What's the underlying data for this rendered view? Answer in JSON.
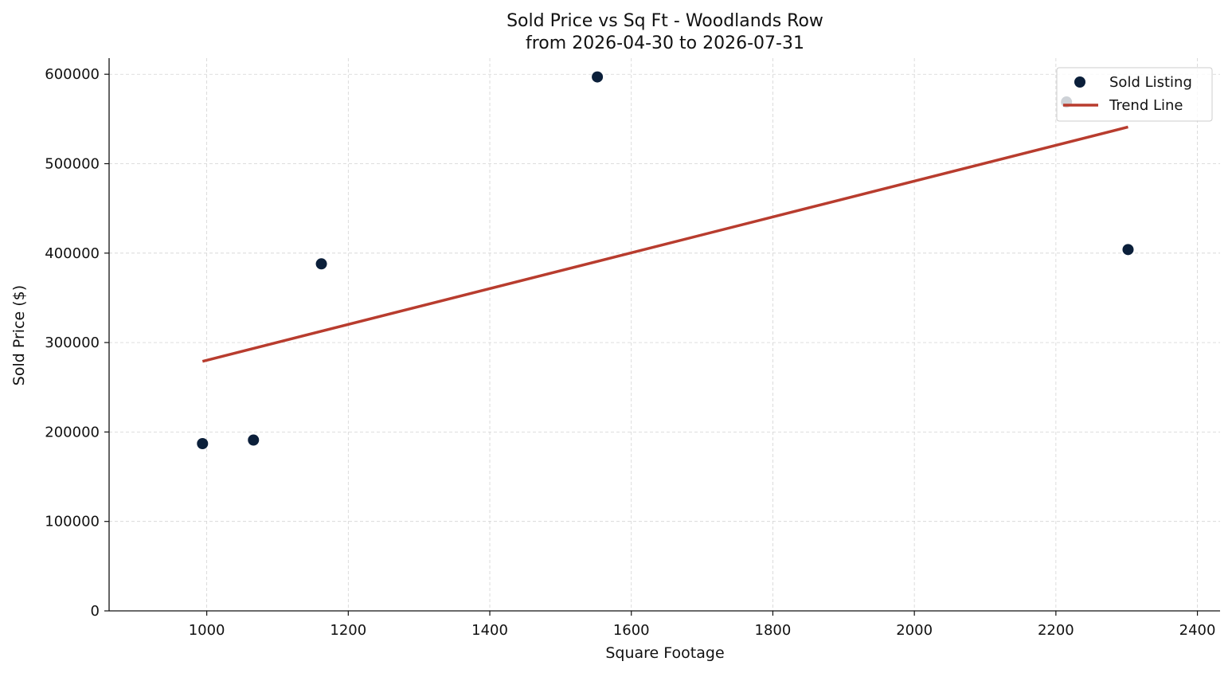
{
  "chart_data": {
    "type": "scatter",
    "title": "Sold Price vs Sq Ft - Woodlands Row",
    "subtitle": "from 2026-04-30 to 2026-07-31",
    "xlabel": "Square Footage",
    "ylabel": "Sold Price ($)",
    "xlim": [
      862,
      2432
    ],
    "ylim": [
      0,
      618000
    ],
    "x_ticks": [
      1000,
      1200,
      1400,
      1600,
      1800,
      2000,
      2200,
      2400
    ],
    "y_ticks": [
      0,
      100000,
      200000,
      300000,
      400000,
      500000,
      600000
    ],
    "grid": true,
    "legend_position": "top-right",
    "series": [
      {
        "name": "Sold Listing",
        "kind": "scatter",
        "color": "#0b1f3a",
        "points": [
          {
            "x": 994,
            "y": 187000
          },
          {
            "x": 1066,
            "y": 191000
          },
          {
            "x": 1162,
            "y": 388000
          },
          {
            "x": 1552,
            "y": 597000
          },
          {
            "x": 2215,
            "y": 569000
          },
          {
            "x": 2302,
            "y": 404000
          }
        ]
      },
      {
        "name": "Trend Line",
        "kind": "line",
        "color": "#b83c2e",
        "points": [
          {
            "x": 994,
            "y": 279000
          },
          {
            "x": 2302,
            "y": 541000
          }
        ]
      }
    ]
  }
}
